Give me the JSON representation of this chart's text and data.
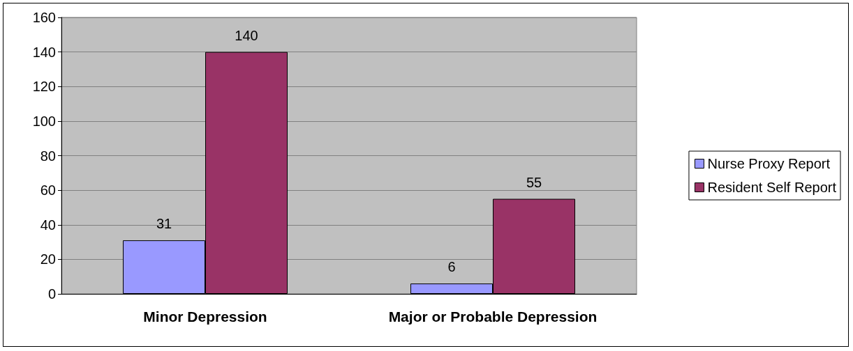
{
  "chart_data": {
    "type": "bar",
    "categories": [
      "Minor Depression",
      "Major or Probable Depression"
    ],
    "series": [
      {
        "name": "Nurse Proxy Report",
        "color": "#9999ff",
        "values": [
          31,
          6
        ]
      },
      {
        "name": "Resident Self Report",
        "color": "#993366",
        "values": [
          140,
          55
        ]
      }
    ],
    "ylim": [
      0,
      160
    ],
    "yticks": [
      0,
      20,
      40,
      60,
      80,
      100,
      120,
      140,
      160
    ],
    "grid": "y",
    "legend": "right",
    "data_labels": true
  }
}
